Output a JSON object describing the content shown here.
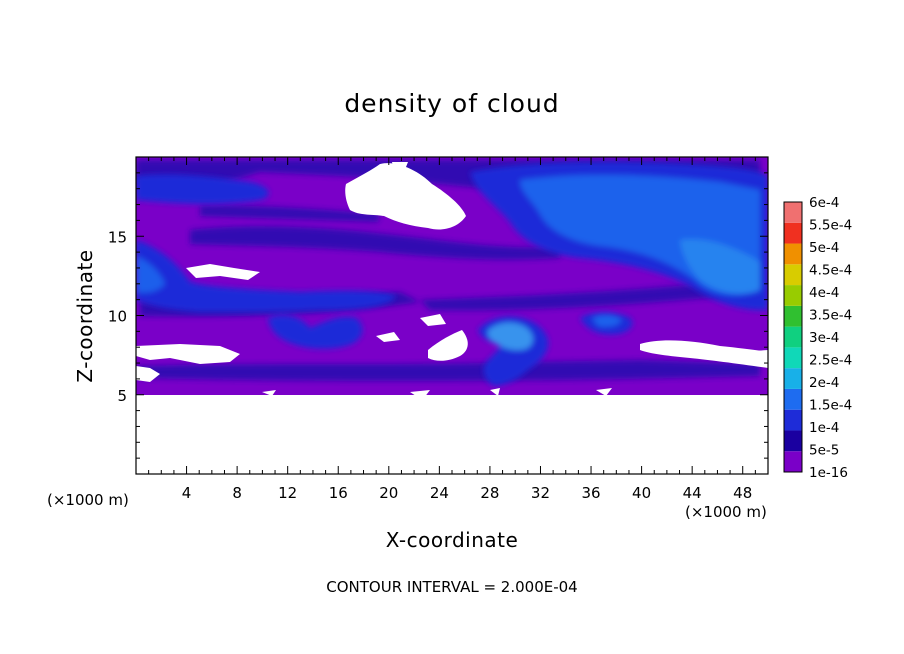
{
  "chart_data": {
    "type": "heatmap",
    "title": "density of cloud",
    "xlabel": "X-coordinate",
    "ylabel": "Z-coordinate",
    "x_unit": "(×1000 m)",
    "y_unit": "(×1000 m)",
    "xlim": [
      0,
      50
    ],
    "ylim": [
      0,
      20
    ],
    "x_ticks": [
      "4",
      "8",
      "12",
      "16",
      "20",
      "24",
      "28",
      "32",
      "36",
      "40",
      "44",
      "48"
    ],
    "y_ticks": [
      "5",
      "10",
      "15"
    ],
    "colorbar": {
      "labels": [
        "1e-16",
        "5e-5",
        "1e-4",
        "1.5e-4",
        "2e-4",
        "2.5e-4",
        "3e-4",
        "3.5e-4",
        "4e-4",
        "4.5e-4",
        "5e-4",
        "5.5e-4",
        "6e-4"
      ],
      "colors": [
        "#7a00c8",
        "#1a00a0",
        "#1e2cd8",
        "#1e6cf0",
        "#18b0e8",
        "#10d8b8",
        "#10d080",
        "#30c030",
        "#98cc00",
        "#d8cc00",
        "#f09000",
        "#f03020",
        "#f07070"
      ]
    },
    "regions": {
      "background_color": "#7a00c8",
      "empty_color": "#ffffff",
      "empty_below_z": 5
    },
    "footer": "CONTOUR INTERVAL = 2.000E-04"
  }
}
